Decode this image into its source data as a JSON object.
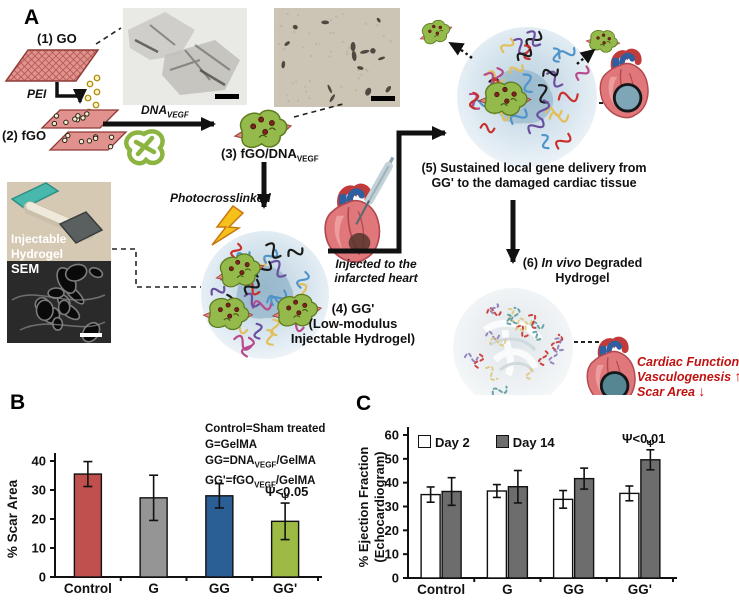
{
  "panel_a": {
    "label": "A",
    "steps": {
      "s1": "(1) GO",
      "pei": "PEI",
      "s2": "(2) fGO",
      "dna_pre": "DNA",
      "dna_sub": "VEGF",
      "s3_pre": "(3) fGO/DNA",
      "s3_sub": "VEGF",
      "photocrosslinked": "Photocrosslinked",
      "s4_line1": "(4) GG'",
      "s4_line2": "(Low-modulus",
      "s4_line3": "Injectable Hydrogel)",
      "injected_line1": "Injected to the",
      "injected_line2": "infarcted heart",
      "s5_line1": "(5) Sustained local gene delivery from",
      "s5_line2": "GG' to the damaged cardiac tissue",
      "s6_pre": "(6) ",
      "s6_italic": "In vivo",
      "s6_post": " Degraded",
      "s6_line2": "Hydrogel"
    },
    "photo_label_line1": "Injectable",
    "photo_label_line2": "Hydrogel",
    "sem_label": "SEM",
    "outcome_color": "#c11212",
    "outcomes": [
      {
        "text": "Cardiac Function",
        "arrow": "↑"
      },
      {
        "text": "Vasculogenesis",
        "arrow": "↑"
      },
      {
        "text": "Scar Area",
        "arrow": "↓"
      }
    ]
  },
  "panel_b_label": "B",
  "panel_c_label": "C",
  "chart_data": [
    {
      "type": "bar",
      "panel": "B",
      "ylabel": "% Scar Area",
      "ylim": [
        0,
        40
      ],
      "yticks": [
        0,
        10,
        20,
        30,
        40
      ],
      "categories": [
        "Control",
        "G",
        "GG",
        "GG'"
      ],
      "series": [
        {
          "name": "",
          "values": [
            35.5,
            27.3,
            28,
            19.2
          ],
          "errors": [
            4.3,
            7.8,
            4.2,
            6.3
          ],
          "fills": [
            "#c0504d",
            "#959595",
            "#2a5f96",
            "#9cba44"
          ]
        }
      ],
      "annotation": "Ψ<0.05",
      "marker": "Ψ",
      "grid": false,
      "legend": {
        "line1": "Control=Sham treated",
        "line2": "G=GelMA",
        "line3_pre": "GG=DNA",
        "line3_sub": "VEGF",
        "line3_post": "/GelMA",
        "line4_pre": "GG'=fGO",
        "line4_sub": "VEGF",
        "line4_post": "/GelMA"
      }
    },
    {
      "type": "bar",
      "panel": "C",
      "ylabel_line1": "% Ejection Fraction",
      "ylabel_line2": "(Echocardiogram)",
      "ylim": [
        0,
        60
      ],
      "yticks": [
        0,
        10,
        20,
        30,
        40,
        50,
        60
      ],
      "categories": [
        "Control",
        "G",
        "GG",
        "GG'"
      ],
      "series": [
        {
          "name": "Day 2",
          "values": [
            35,
            36.5,
            33,
            35.5
          ],
          "errors": [
            3.2,
            2.7,
            3.7,
            3.1
          ],
          "fill": "#ffffff"
        },
        {
          "name": "Day 14",
          "values": [
            36.3,
            38.3,
            41.7,
            49.6
          ],
          "errors": [
            5.8,
            6.8,
            4.4,
            4.2
          ],
          "fill": "#6d6d6d"
        }
      ],
      "annotation": "Ψ<0.01",
      "marker": "Ψ",
      "grid": false,
      "legend_position": "top-left"
    }
  ]
}
